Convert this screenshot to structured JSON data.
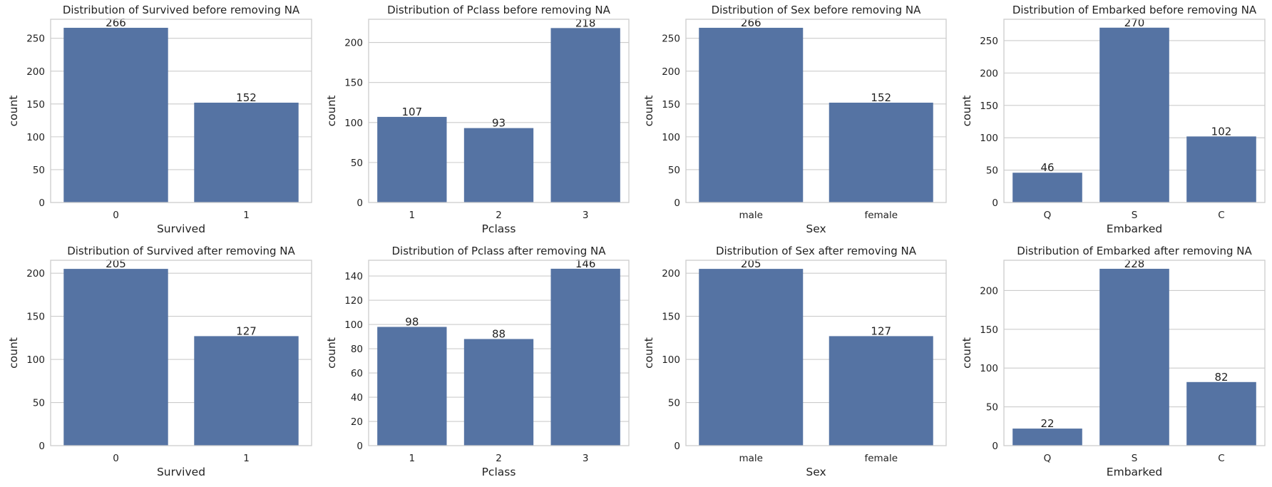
{
  "colors": {
    "bar": "#5573a3",
    "grid": "#cccccc",
    "text": "#222222",
    "background": "#ffffff"
  },
  "chart_data": [
    {
      "type": "bar",
      "title": "Distribution of Survived before removing NA",
      "xlabel": "Survived",
      "ylabel": "count",
      "categories": [
        "0",
        "1"
      ],
      "values": [
        266,
        152
      ],
      "ylim": [
        0,
        279
      ],
      "yticks": [
        0,
        50,
        100,
        150,
        200,
        250
      ],
      "grid": true
    },
    {
      "type": "bar",
      "title": "Distribution of Pclass before removing NA",
      "xlabel": "Pclass",
      "ylabel": "count",
      "categories": [
        "1",
        "2",
        "3"
      ],
      "values": [
        107,
        93,
        218
      ],
      "ylim": [
        0,
        229
      ],
      "yticks": [
        0,
        50,
        100,
        150,
        200
      ],
      "grid": true
    },
    {
      "type": "bar",
      "title": "Distribution of Sex before removing NA",
      "xlabel": "Sex",
      "ylabel": "count",
      "categories": [
        "male",
        "female"
      ],
      "values": [
        266,
        152
      ],
      "ylim": [
        0,
        279
      ],
      "yticks": [
        0,
        50,
        100,
        150,
        200,
        250
      ],
      "grid": true
    },
    {
      "type": "bar",
      "title": "Distribution of Embarked before removing NA",
      "xlabel": "Embarked",
      "ylabel": "count",
      "categories": [
        "Q",
        "S",
        "C"
      ],
      "values": [
        46,
        270,
        102
      ],
      "ylim": [
        0,
        283
      ],
      "yticks": [
        0,
        50,
        100,
        150,
        200,
        250
      ],
      "grid": true
    },
    {
      "type": "bar",
      "title": "Distribution of Survived after removing NA",
      "xlabel": "Survived",
      "ylabel": "count",
      "categories": [
        "0",
        "1"
      ],
      "values": [
        205,
        127
      ],
      "ylim": [
        0,
        215
      ],
      "yticks": [
        0,
        50,
        100,
        150,
        200
      ],
      "grid": true
    },
    {
      "type": "bar",
      "title": "Distribution of Pclass after removing NA",
      "xlabel": "Pclass",
      "ylabel": "count",
      "categories": [
        "1",
        "2",
        "3"
      ],
      "values": [
        98,
        88,
        146
      ],
      "ylim": [
        0,
        153
      ],
      "yticks": [
        0,
        20,
        40,
        60,
        80,
        100,
        120,
        140
      ],
      "grid": true
    },
    {
      "type": "bar",
      "title": "Distribution of Sex after removing NA",
      "xlabel": "Sex",
      "ylabel": "count",
      "categories": [
        "male",
        "female"
      ],
      "values": [
        205,
        127
      ],
      "ylim": [
        0,
        215
      ],
      "yticks": [
        0,
        50,
        100,
        150,
        200
      ],
      "grid": true
    },
    {
      "type": "bar",
      "title": "Distribution of Embarked after removing NA",
      "xlabel": "Embarked",
      "ylabel": "count",
      "categories": [
        "Q",
        "S",
        "C"
      ],
      "values": [
        22,
        228,
        82
      ],
      "ylim": [
        0,
        239
      ],
      "yticks": [
        0,
        50,
        100,
        150,
        200
      ],
      "grid": true
    }
  ]
}
